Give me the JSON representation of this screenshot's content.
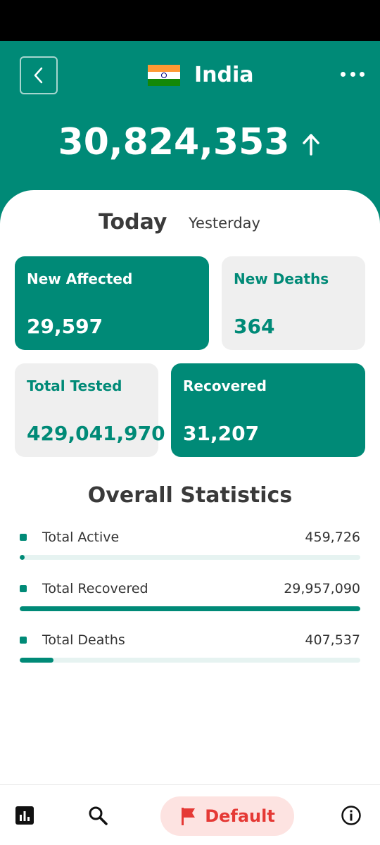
{
  "header": {
    "country": "India",
    "total_cases": "30,824,353"
  },
  "tabs": {
    "today": "Today",
    "yesterday": "Yesterday"
  },
  "tiles": {
    "new_affected": {
      "label": "New Affected",
      "value": "29,597"
    },
    "new_deaths": {
      "label": "New Deaths",
      "value": "364"
    },
    "total_tested": {
      "label": "Total Tested",
      "value": "429,041,970"
    },
    "recovered": {
      "label": "Recovered",
      "value": "31,207"
    }
  },
  "overall": {
    "title": "Overall Statistics",
    "stats": [
      {
        "name": "Total Active",
        "value": "459,726",
        "progress": 0.015
      },
      {
        "name": "Total Recovered",
        "value": "29,957,090",
        "progress": 1.0
      },
      {
        "name": "Total Deaths",
        "value": "407,537",
        "progress": 0.1
      }
    ]
  },
  "bottom_nav": {
    "default_label": "Default"
  },
  "colors": {
    "primary": "#008a77",
    "tile_grey": "#efefef",
    "default_bg": "#fde3e1",
    "default_text": "#e53935"
  },
  "icons": {
    "back": "chevron-left-icon",
    "more": "more-horizontal-icon",
    "trend": "arrow-up-icon",
    "stats": "bar-chart-icon",
    "search": "search-icon",
    "flag": "flag-icon",
    "info": "info-icon"
  }
}
